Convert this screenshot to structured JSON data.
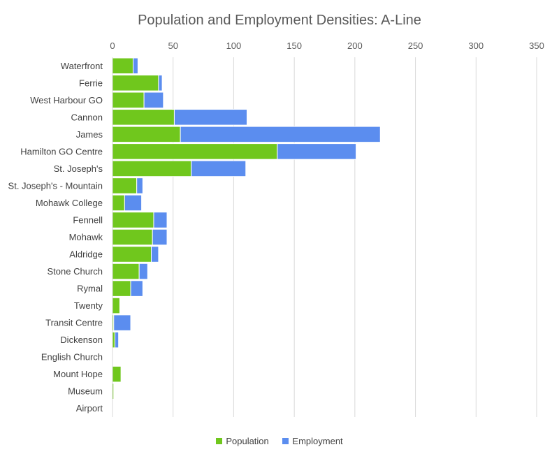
{
  "chart_data": {
    "type": "bar",
    "orientation": "horizontal",
    "stacked": true,
    "title": "Population and Employment Densities: A-Line",
    "categories": [
      "Waterfront",
      "Ferrie",
      "West Harbour GO",
      "Cannon",
      "James",
      "Hamilton GO Centre",
      "St. Joseph's",
      "St. Joseph's - Mountain",
      "Mohawk College",
      "Fennell",
      "Mohawk",
      "Aldridge",
      "Stone Church",
      "Rymal",
      "Twenty",
      "Transit Centre",
      "Dickenson",
      "English Church",
      "Mount Hope",
      "Museum",
      "Airport"
    ],
    "series": [
      {
        "name": "Population",
        "color": "#70C71D",
        "values": [
          17,
          38,
          26,
          51,
          56,
          136,
          65,
          20,
          10,
          34,
          33,
          32,
          22,
          15,
          6,
          1,
          2,
          0,
          7,
          1,
          0
        ]
      },
      {
        "name": "Employment",
        "color": "#5B8DEF",
        "values": [
          4,
          3,
          16,
          60,
          165,
          65,
          45,
          5,
          14,
          11,
          12,
          6,
          7,
          10,
          0,
          14,
          3,
          0,
          0,
          0,
          0
        ]
      }
    ],
    "xlim": [
      0,
      350
    ],
    "xticks": [
      0,
      50,
      100,
      150,
      200,
      250,
      300,
      350
    ],
    "grid": true,
    "legend_position": "bottom"
  }
}
